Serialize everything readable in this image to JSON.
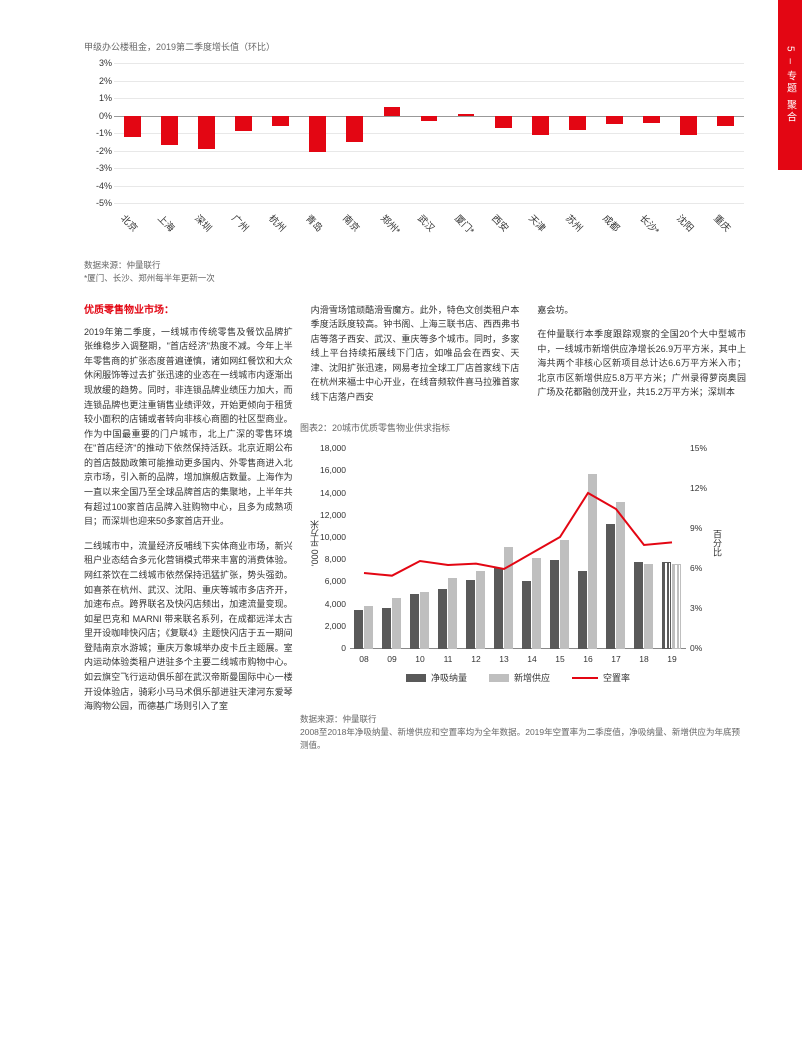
{
  "side_tab": "5 – 专题 聚合",
  "chart1": {
    "title": "甲级办公楼租金，2019第二季度增长值（环比）",
    "type": "bar",
    "ylim": [
      -5,
      3
    ],
    "ytick_step": 1,
    "bar_color": "#e30613",
    "grid_color": "#e8e8e8",
    "axis_color": "#999999",
    "label_fontsize": 9,
    "bar_width": 16.8,
    "categories": [
      "北京",
      "上海",
      "深圳",
      "广州",
      "杭州",
      "青岛",
      "南京",
      "郑州*",
      "武汉",
      "厦门*",
      "西安",
      "天津",
      "苏州",
      "成都",
      "长沙*",
      "沈阳",
      "重庆"
    ],
    "values": [
      -1.2,
      -1.7,
      -1.9,
      -0.9,
      -0.6,
      -2.1,
      -1.5,
      0.5,
      -0.3,
      0.1,
      -0.7,
      -1.1,
      -0.8,
      -0.5,
      -0.4,
      -1.1,
      -0.6
    ],
    "source": "数据来源：仲量联行",
    "footnote": "*厦门、长沙、郑州每半年更新一次"
  },
  "body": {
    "heading": "优质零售物业市场：",
    "col1_p1": "2019年第二季度，一线城市传统零售及餐饮品牌扩张维稳步入调整期，\"首店经济\"热度不减。今年上半年零售商的扩张态度普遍谨慎，诸如网红餐饮和大众休闲服饰等过去扩张迅速的业态在一线城市内逐渐出现放缓的趋势。同时，非连锁品牌业绩压力加大，而连锁品牌也更注重销售业绩评效，开始更倾向于租赁较小面积的店铺或者转向非核心商圈的社区型商业。作为中国最重要的门户城市，北上广深的零售环境在\"首店经济\"的推动下依然保持活跃。北京近期公布的首店鼓励政策可能推动更多国内、外零售商进入北京市场，引入新的品牌，增加旗舰店数量。上海作为一直以来全国乃至全球品牌首店的集聚地，上半年共有超过100家首店品牌入驻购物中心，且多为成熟项目；而深圳也迎来50多家首店开业。",
    "col1_p2": "二线城市中，流量经济反哺线下实体商业市场，新兴租户业态结合多元化营销模式带来丰富的消费体验。网红茶饮在二线城市依然保持迅猛扩张，势头强劲。如喜茶在杭州、武汉、沈阳、重庆等城市多店齐开，加速布点。跨界联名及快闪店频出，加速流量变现。如星巴克和 MARNI 带来联名系列，在成都远洋太古里开设咖啡快闪店；《复联4》主题快闪店于五一期间登陆南京水游城；重庆万象城举办皮卡丘主题展。室内运动体验类租户进驻多个主要二线城市购物中心。如云旗空飞行运动俱乐部在武汉帝斯曼国际中心一楼开设体验店，骑彩小马马术俱乐部进驻天津河东爱琴海购物公园，而德基广场则引入了室",
    "col2_p1": "内滑雪场馆顽酷滑雪魔方。此外，特色文创类租户本季度活跃度较高。钟书阁、上海三联书店、西西弗书店等落子西安、武汉、重庆等多个城市。同时，多家线上平台持续拓展线下门店，如唯品会在西安、天津、沈阳扩张迅速，网易考拉全球工厂店首家线下店在杭州来福士中心开业，在线音频软件喜马拉雅首家线下店落户西安",
    "col3_p1": "嘉会坊。",
    "col3_p2": "在仲量联行本季度跟踪观察的全国20个大中型城市中，一线城市新增供应净增长26.9万平方米，其中上海共两个非核心区新项目总计达6.6万平方米入市；北京市区新增供应5.8万平方米；广州录得萝岗奥园广场及花都融创茂开业，共15.2万平方米；深圳本"
  },
  "chart2": {
    "title": "图表2：20城市优质零售物业供求指标",
    "type": "bar+line",
    "ylabel_left": "'000 平方米",
    "ylabel_right": "百分比",
    "ylim_left": [
      0,
      18000
    ],
    "ytick_left_step": 2000,
    "ylim_right": [
      0,
      15
    ],
    "ytick_right_step": 3,
    "categories": [
      "08",
      "09",
      "10",
      "11",
      "12",
      "13",
      "14",
      "15",
      "16",
      "17",
      "18",
      "19"
    ],
    "series": [
      {
        "name": "净吸纳量",
        "type": "bar",
        "color": "#595959",
        "values": [
          3500,
          3700,
          5000,
          5400,
          6200,
          7300,
          6100,
          8000,
          7000,
          11300,
          7800,
          7800
        ],
        "pattern_last": true
      },
      {
        "name": "新增供应",
        "type": "bar",
        "color": "#bfbfbf",
        "values": [
          3900,
          4600,
          5100,
          6400,
          7000,
          9200,
          8200,
          9800,
          15800,
          13200,
          7700,
          7700
        ],
        "pattern_last": true
      },
      {
        "name": "空置率",
        "type": "line",
        "color": "#e30613",
        "values": [
          5.7,
          5.5,
          6.6,
          6.3,
          6.4,
          6.0,
          7.2,
          8.4,
          11.7,
          10.5,
          7.8,
          8.0
        ]
      }
    ],
    "grid_color": "#e8e8e8",
    "line_width": 2,
    "legend_position": "bottom",
    "source": "数据来源：仲量联行",
    "footnote": "2008至2018年净吸纳量、新增供应和空置率均为全年数据。2019年空置率为二季度值，净吸纳量、新增供应为年底预测值。"
  }
}
